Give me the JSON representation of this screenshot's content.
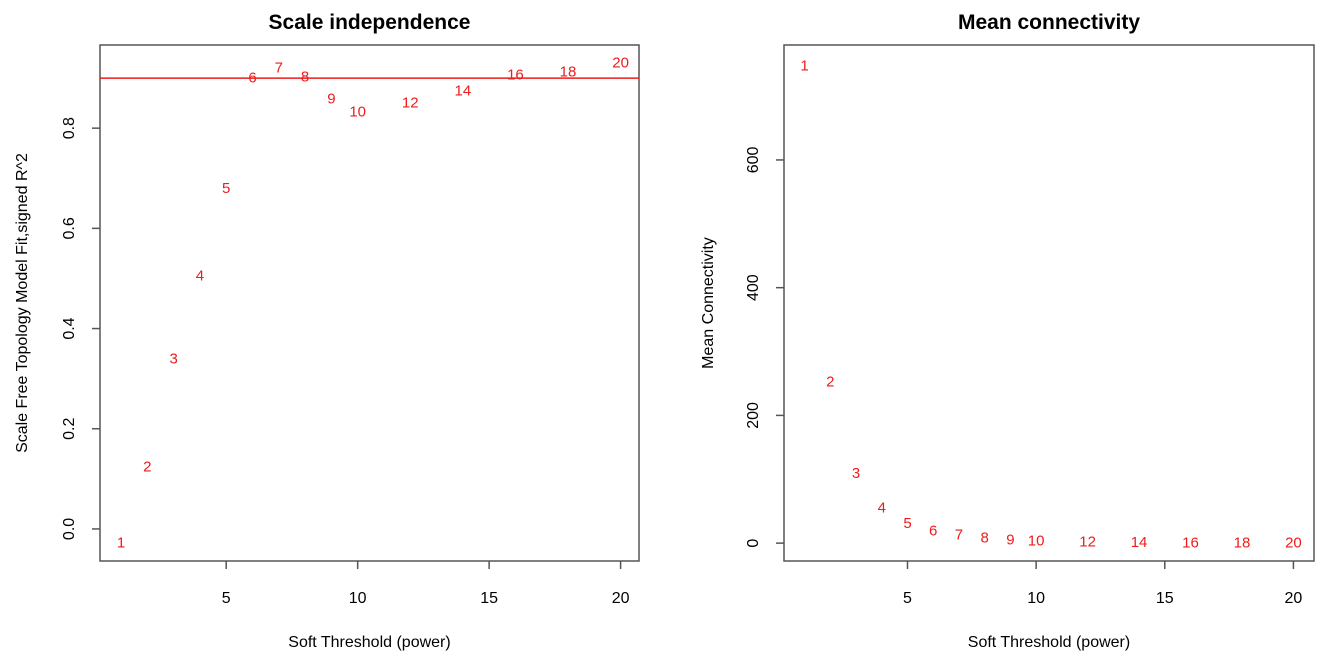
{
  "chart_data": [
    {
      "type": "scatter",
      "marker": "text-labels",
      "title": "Scale independence",
      "xlabel": "Soft Threshold (power)",
      "ylabel": "Scale Free Topology Model Fit,signed R^2",
      "xlim": [
        0.2,
        20.7
      ],
      "ylim": [
        -0.064,
        0.966
      ],
      "xticks": [
        5,
        10,
        15,
        20
      ],
      "xtick_labels": [
        "5",
        "10",
        "15",
        "20"
      ],
      "yticks": [
        0.0,
        0.2,
        0.4,
        0.6,
        0.8
      ],
      "ytick_labels": [
        "0.0",
        "0.2",
        "0.4",
        "0.6",
        "0.8"
      ],
      "grid": false,
      "label_color": "#ee1c1c",
      "reference_line": {
        "orientation": "horizontal",
        "y": 0.9,
        "color": "#ee1c1c"
      },
      "points": [
        {
          "x": 1,
          "y": -0.028,
          "label": "1"
        },
        {
          "x": 2,
          "y": 0.124,
          "label": "2"
        },
        {
          "x": 3,
          "y": 0.339,
          "label": "3"
        },
        {
          "x": 4,
          "y": 0.505,
          "label": "4"
        },
        {
          "x": 5,
          "y": 0.68,
          "label": "5"
        },
        {
          "x": 6,
          "y": 0.9,
          "label": "6"
        },
        {
          "x": 7,
          "y": 0.92,
          "label": "7"
        },
        {
          "x": 8,
          "y": 0.902,
          "label": "8"
        },
        {
          "x": 9,
          "y": 0.858,
          "label": "9"
        },
        {
          "x": 10,
          "y": 0.832,
          "label": "10"
        },
        {
          "x": 12,
          "y": 0.85,
          "label": "12"
        },
        {
          "x": 14,
          "y": 0.874,
          "label": "14"
        },
        {
          "x": 16,
          "y": 0.906,
          "label": "16"
        },
        {
          "x": 18,
          "y": 0.912,
          "label": "18"
        },
        {
          "x": 20,
          "y": 0.93,
          "label": "20"
        }
      ]
    },
    {
      "type": "scatter",
      "marker": "text-labels",
      "title": "Mean connectivity",
      "xlabel": "Soft Threshold (power)",
      "ylabel": "Mean Connectivity",
      "xlim": [
        0.2,
        20.8
      ],
      "ylim": [
        -28,
        780
      ],
      "xticks": [
        5,
        10,
        15,
        20
      ],
      "xtick_labels": [
        "5",
        "10",
        "15",
        "20"
      ],
      "yticks": [
        0,
        200,
        400,
        600
      ],
      "ytick_labels": [
        "0",
        "200",
        "400",
        "600"
      ],
      "grid": false,
      "label_color": "#ee1c1c",
      "points": [
        {
          "x": 1,
          "y": 747,
          "label": "1"
        },
        {
          "x": 2,
          "y": 252,
          "label": "2"
        },
        {
          "x": 3,
          "y": 109,
          "label": "3"
        },
        {
          "x": 4,
          "y": 55,
          "label": "4"
        },
        {
          "x": 5,
          "y": 31,
          "label": "5"
        },
        {
          "x": 6,
          "y": 19,
          "label": "6"
        },
        {
          "x": 7,
          "y": 12.5,
          "label": "7"
        },
        {
          "x": 8,
          "y": 8,
          "label": "8"
        },
        {
          "x": 9,
          "y": 5,
          "label": "9"
        },
        {
          "x": 10,
          "y": 3,
          "label": "10"
        },
        {
          "x": 12,
          "y": 1.5,
          "label": "12"
        },
        {
          "x": 14,
          "y": 1,
          "label": "14"
        },
        {
          "x": 16,
          "y": 0.5,
          "label": "16"
        },
        {
          "x": 18,
          "y": 0.3,
          "label": "18"
        },
        {
          "x": 20,
          "y": 0.2,
          "label": "20"
        }
      ]
    }
  ]
}
